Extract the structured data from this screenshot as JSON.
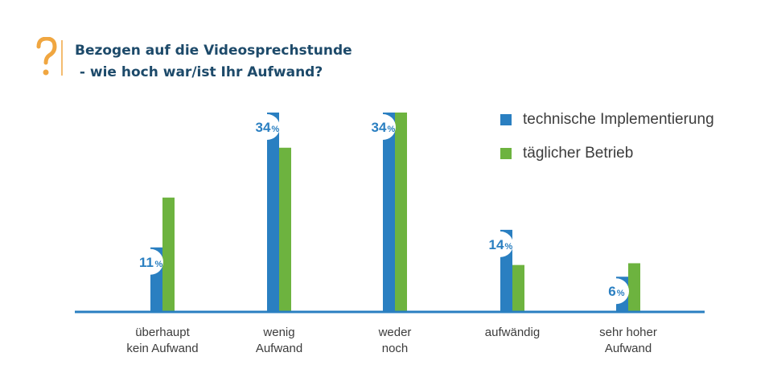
{
  "title": {
    "line1": "Bezogen auf die Videosprechstunde",
    "line2": " - wie hoch war/ist Ihr Aufwand?"
  },
  "colors": {
    "blue": "#2a7fc1",
    "green": "#6db33f",
    "axis": "#2a7fc1",
    "question_mark": "#f0a640",
    "title": "#1d4a6a"
  },
  "chart_data": {
    "type": "bar",
    "categories": [
      [
        "überhaupt",
        "kein Aufwand"
      ],
      [
        "wenig",
        "Aufwand"
      ],
      [
        "weder",
        "noch"
      ],
      [
        "aufwändig"
      ],
      [
        "sehr hoher",
        "Aufwand"
      ]
    ],
    "series": [
      {
        "name": "technische Implementierung",
        "values": [
          11,
          34,
          34,
          14,
          6
        ],
        "color": "#2a7fc1",
        "labels": [
          "11",
          "34",
          "34",
          "14",
          "6"
        ]
      },
      {
        "name": "täglicher Betrieb",
        "values": [
          19.5,
          28,
          34,
          8,
          8.3
        ],
        "color": "#6db33f"
      }
    ],
    "ylim": [
      0,
      34
    ],
    "label_unit": "%",
    "legend": "top-right"
  }
}
